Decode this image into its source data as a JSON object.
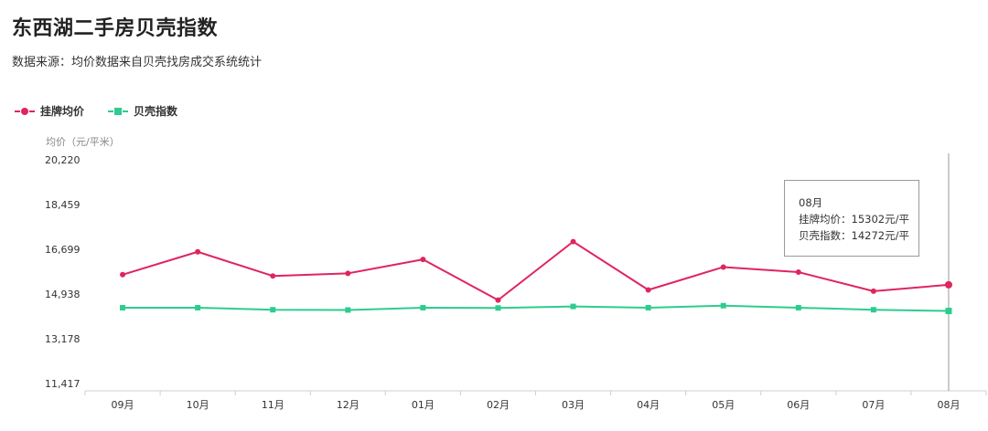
{
  "header": {
    "title": "东西湖二手房贝壳指数",
    "subtitle": "数据来源：均价数据来自贝壳找房成交系统统计"
  },
  "colors": {
    "listing": "#e0245e",
    "index": "#2ecc8f",
    "axis": "#cfcfcf",
    "crosshair": "#999999"
  },
  "legend": [
    {
      "label": "挂牌均价",
      "marker": "circle",
      "color": "#e0245e"
    },
    {
      "label": "贝壳指数",
      "marker": "square",
      "color": "#2ecc8f"
    }
  ],
  "chart_data": {
    "type": "line",
    "ylabel": "均价（元/平米）",
    "ylim": [
      11417,
      20220
    ],
    "yticks": [
      "20,220",
      "18,459",
      "16,699",
      "14,938",
      "13,178",
      "11,417"
    ],
    "yticks_values": [
      20220,
      18459,
      16699,
      14938,
      13178,
      11417
    ],
    "categories": [
      "09月",
      "10月",
      "11月",
      "12月",
      "01月",
      "02月",
      "03月",
      "04月",
      "05月",
      "06月",
      "07月",
      "08月"
    ],
    "series": [
      {
        "name": "挂牌均价",
        "values": [
          15700,
          16600,
          15650,
          15750,
          16300,
          14700,
          17000,
          15100,
          16000,
          15800,
          15050,
          15302
        ]
      },
      {
        "name": "贝壳指数",
        "values": [
          14400,
          14400,
          14320,
          14310,
          14400,
          14390,
          14450,
          14400,
          14480,
          14400,
          14320,
          14272
        ]
      }
    ],
    "grid": false,
    "legend_position": "top-left"
  },
  "tooltip": {
    "title": "08月",
    "lines": [
      "挂牌均价：15302元/平",
      "贝壳指数：14272元/平"
    ]
  }
}
